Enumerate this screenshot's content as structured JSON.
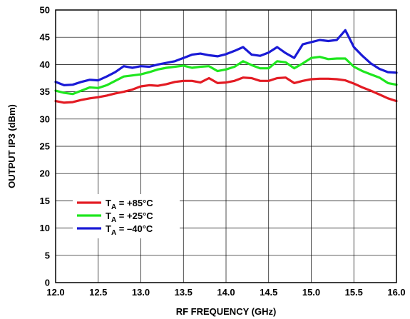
{
  "chart_data": {
    "type": "line",
    "title": "",
    "xlabel": "RF FREQUENCY (GHz)",
    "ylabel": "OUTPUT IP3 (dBm)",
    "xlim": [
      12.0,
      16.0
    ],
    "ylim": [
      0,
      50
    ],
    "x_ticks": [
      "12.0",
      "12.5",
      "13.0",
      "13.5",
      "14.0",
      "14.5",
      "15.0",
      "15.5",
      "16.0"
    ],
    "y_ticks": [
      "0",
      "5",
      "10",
      "15",
      "20",
      "25",
      "30",
      "35",
      "40",
      "45",
      "50"
    ],
    "grid": true,
    "legend": {
      "placement": "bottom-left",
      "entries": [
        {
          "main": "T",
          "sub": "A",
          "rest": " = +85°C",
          "color": "#e31b23"
        },
        {
          "main": "T",
          "sub": "A",
          "rest": " = +25°C",
          "color": "#1ee61e"
        },
        {
          "main": "T",
          "sub": "A",
          "rest": " = –40°C",
          "color": "#1a1ad6"
        }
      ]
    },
    "series": [
      {
        "name": "TA = +85°C",
        "color": "#e31b23",
        "x": [
          12.0,
          12.1,
          12.2,
          12.3,
          12.4,
          12.5,
          12.6,
          12.7,
          12.8,
          12.9,
          13.0,
          13.1,
          13.2,
          13.3,
          13.4,
          13.5,
          13.6,
          13.7,
          13.8,
          13.9,
          14.0,
          14.1,
          14.2,
          14.3,
          14.4,
          14.5,
          14.6,
          14.7,
          14.8,
          14.9,
          15.0,
          15.1,
          15.2,
          15.3,
          15.4,
          15.5,
          15.6,
          15.7,
          15.8,
          15.9,
          16.0
        ],
        "values": [
          33.3,
          33.0,
          33.1,
          33.5,
          33.8,
          34.0,
          34.3,
          34.7,
          35.0,
          35.4,
          36.0,
          36.2,
          36.1,
          36.4,
          36.8,
          37.0,
          37.0,
          36.7,
          37.5,
          36.6,
          36.7,
          37.0,
          37.6,
          37.5,
          37.0,
          37.0,
          37.5,
          37.6,
          36.6,
          37.0,
          37.3,
          37.4,
          37.4,
          37.3,
          37.1,
          36.5,
          35.8,
          35.2,
          34.5,
          33.8,
          33.3
        ]
      },
      {
        "name": "TA = +25°C",
        "color": "#1ee61e",
        "x": [
          12.0,
          12.1,
          12.2,
          12.3,
          12.4,
          12.5,
          12.6,
          12.7,
          12.8,
          12.9,
          13.0,
          13.1,
          13.2,
          13.3,
          13.4,
          13.5,
          13.6,
          13.7,
          13.8,
          13.9,
          14.0,
          14.1,
          14.2,
          14.3,
          14.4,
          14.5,
          14.6,
          14.7,
          14.8,
          14.9,
          15.0,
          15.1,
          15.2,
          15.3,
          15.4,
          15.5,
          15.6,
          15.7,
          15.8,
          15.9,
          16.0
        ],
        "values": [
          35.2,
          34.8,
          34.6,
          35.2,
          35.8,
          35.7,
          36.2,
          37.0,
          37.8,
          38.0,
          38.2,
          38.6,
          39.1,
          39.4,
          39.6,
          39.8,
          39.4,
          39.6,
          39.7,
          38.8,
          39.1,
          39.6,
          40.6,
          39.9,
          39.3,
          39.3,
          40.6,
          40.4,
          39.3,
          40.2,
          41.2,
          41.4,
          41.0,
          41.1,
          41.1,
          39.6,
          38.8,
          38.2,
          37.6,
          36.6,
          36.3
        ]
      },
      {
        "name": "TA = –40°C",
        "color": "#1a1ad6",
        "x": [
          12.0,
          12.1,
          12.2,
          12.3,
          12.4,
          12.5,
          12.6,
          12.7,
          12.8,
          12.9,
          13.0,
          13.1,
          13.2,
          13.3,
          13.4,
          13.5,
          13.6,
          13.7,
          13.8,
          13.9,
          14.0,
          14.1,
          14.2,
          14.3,
          14.4,
          14.5,
          14.6,
          14.7,
          14.8,
          14.9,
          15.0,
          15.1,
          15.2,
          15.3,
          15.4,
          15.5,
          15.6,
          15.7,
          15.8,
          15.9,
          16.0
        ],
        "values": [
          36.8,
          36.2,
          36.3,
          36.8,
          37.2,
          37.1,
          37.8,
          38.6,
          39.7,
          39.4,
          39.7,
          39.6,
          40.0,
          40.3,
          40.6,
          41.2,
          41.8,
          42.0,
          41.7,
          41.5,
          41.9,
          42.5,
          43.2,
          41.8,
          41.6,
          42.2,
          43.2,
          42.1,
          41.2,
          43.7,
          44.1,
          44.5,
          44.3,
          44.5,
          46.3,
          43.2,
          41.6,
          40.2,
          39.2,
          38.6,
          38.5
        ]
      }
    ]
  }
}
